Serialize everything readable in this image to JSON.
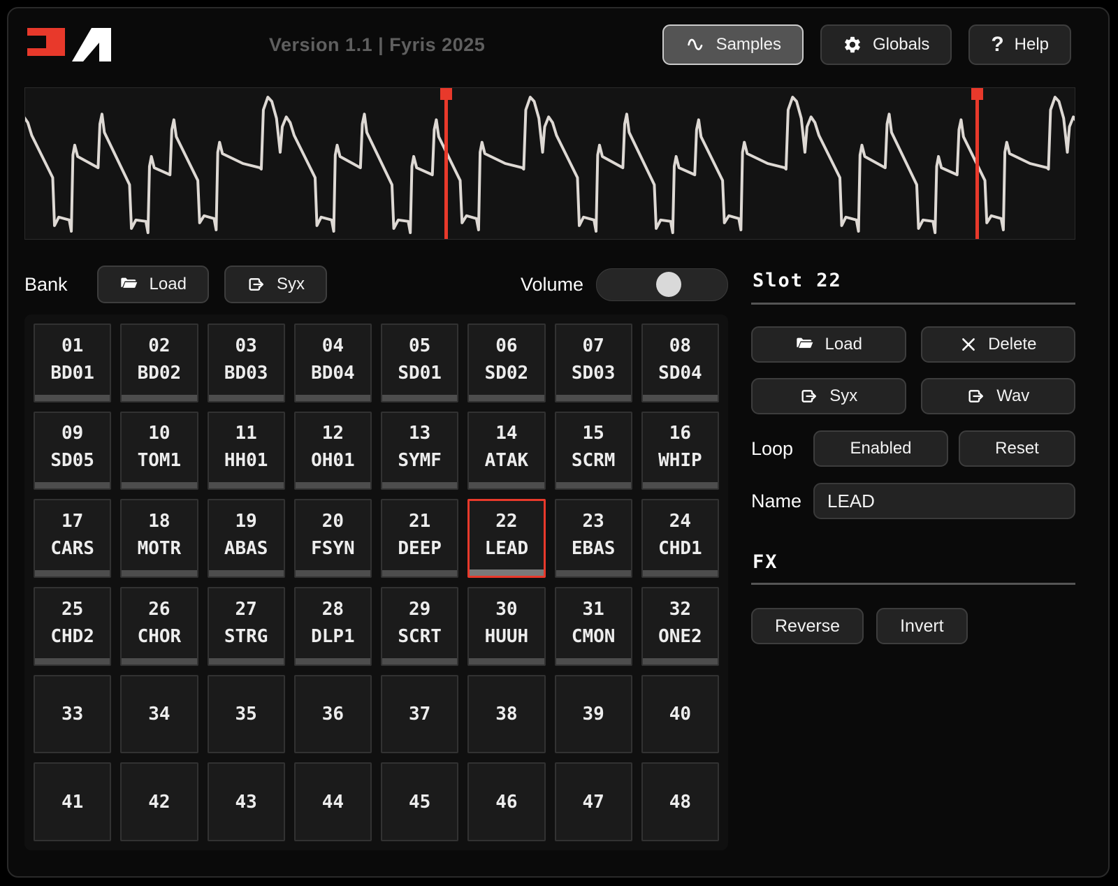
{
  "header": {
    "version_text": "Version 1.1 | Fyris 2025",
    "nav": [
      {
        "label": "Samples",
        "icon": "sine-icon",
        "active": true
      },
      {
        "label": "Globals",
        "icon": "gear-icon",
        "active": false
      },
      {
        "label": "Help",
        "icon": "question-icon",
        "active": false
      }
    ]
  },
  "waveform": {
    "stroke_color": "#ded9d4",
    "marker_color": "#e8392b",
    "markers_percent": [
      40.1,
      90.7
    ],
    "periods": 4,
    "phase": 0.1,
    "period_points": [
      [
        0.0,
        0.54
      ],
      [
        0.008,
        0.12
      ],
      [
        0.025,
        0.03
      ],
      [
        0.04,
        0.06
      ],
      [
        0.058,
        0.18
      ],
      [
        0.072,
        0.42
      ],
      [
        0.08,
        0.24
      ],
      [
        0.095,
        0.17
      ],
      [
        0.11,
        0.21
      ],
      [
        0.125,
        0.3
      ],
      [
        0.205,
        0.6
      ],
      [
        0.212,
        0.94
      ],
      [
        0.228,
        0.88
      ],
      [
        0.268,
        0.9
      ],
      [
        0.276,
        0.98
      ],
      [
        0.282,
        0.44
      ],
      [
        0.289,
        0.37
      ],
      [
        0.3,
        0.45
      ],
      [
        0.378,
        0.53
      ],
      [
        0.385,
        0.22
      ],
      [
        0.393,
        0.15
      ],
      [
        0.402,
        0.28
      ],
      [
        0.498,
        0.65
      ],
      [
        0.505,
        0.96
      ],
      [
        0.522,
        0.9
      ],
      [
        0.56,
        0.91
      ],
      [
        0.568,
        0.99
      ],
      [
        0.574,
        0.52
      ],
      [
        0.581,
        0.45
      ],
      [
        0.592,
        0.53
      ],
      [
        0.652,
        0.58
      ],
      [
        0.659,
        0.26
      ],
      [
        0.667,
        0.19
      ],
      [
        0.676,
        0.31
      ],
      [
        0.758,
        0.62
      ],
      [
        0.765,
        0.92
      ],
      [
        0.782,
        0.87
      ],
      [
        0.82,
        0.89
      ],
      [
        0.828,
        0.97
      ],
      [
        0.834,
        0.42
      ],
      [
        0.841,
        0.35
      ],
      [
        0.852,
        0.43
      ],
      [
        0.93,
        0.5
      ],
      [
        0.995,
        0.53
      ],
      [
        1.0,
        0.54
      ]
    ]
  },
  "bank": {
    "label": "Bank",
    "load_label": "Load",
    "syx_label": "Syx",
    "volume_label": "Volume",
    "volume_percent": 55
  },
  "slots": {
    "selected": 22,
    "items": [
      {
        "num": "01",
        "name": "BD01"
      },
      {
        "num": "02",
        "name": "BD02"
      },
      {
        "num": "03",
        "name": "BD03"
      },
      {
        "num": "04",
        "name": "BD04"
      },
      {
        "num": "05",
        "name": "SD01"
      },
      {
        "num": "06",
        "name": "SD02"
      },
      {
        "num": "07",
        "name": "SD03"
      },
      {
        "num": "08",
        "name": "SD04"
      },
      {
        "num": "09",
        "name": "SD05"
      },
      {
        "num": "10",
        "name": "TOM1"
      },
      {
        "num": "11",
        "name": "HH01"
      },
      {
        "num": "12",
        "name": "OH01"
      },
      {
        "num": "13",
        "name": "SYMF"
      },
      {
        "num": "14",
        "name": "ATAK"
      },
      {
        "num": "15",
        "name": "SCRM"
      },
      {
        "num": "16",
        "name": "WHIP"
      },
      {
        "num": "17",
        "name": "CARS"
      },
      {
        "num": "18",
        "name": "MOTR"
      },
      {
        "num": "19",
        "name": "ABAS"
      },
      {
        "num": "20",
        "name": "FSYN"
      },
      {
        "num": "21",
        "name": "DEEP"
      },
      {
        "num": "22",
        "name": "LEAD"
      },
      {
        "num": "23",
        "name": "EBAS"
      },
      {
        "num": "24",
        "name": "CHD1"
      },
      {
        "num": "25",
        "name": "CHD2"
      },
      {
        "num": "26",
        "name": "CHOR"
      },
      {
        "num": "27",
        "name": "STRG"
      },
      {
        "num": "28",
        "name": "DLP1"
      },
      {
        "num": "29",
        "name": "SCRT"
      },
      {
        "num": "30",
        "name": "HUUH"
      },
      {
        "num": "31",
        "name": "CMON"
      },
      {
        "num": "32",
        "name": "ONE2"
      },
      {
        "num": "33",
        "name": ""
      },
      {
        "num": "34",
        "name": ""
      },
      {
        "num": "35",
        "name": ""
      },
      {
        "num": "36",
        "name": ""
      },
      {
        "num": "37",
        "name": ""
      },
      {
        "num": "38",
        "name": ""
      },
      {
        "num": "39",
        "name": ""
      },
      {
        "num": "40",
        "name": ""
      },
      {
        "num": "41",
        "name": ""
      },
      {
        "num": "42",
        "name": ""
      },
      {
        "num": "43",
        "name": ""
      },
      {
        "num": "44",
        "name": ""
      },
      {
        "num": "45",
        "name": ""
      },
      {
        "num": "46",
        "name": ""
      },
      {
        "num": "47",
        "name": ""
      },
      {
        "num": "48",
        "name": ""
      }
    ]
  },
  "panel": {
    "title": "Slot 22",
    "load_label": "Load",
    "delete_label": "Delete",
    "syx_label": "Syx",
    "wav_label": "Wav",
    "loop_label": "Loop",
    "loop_enabled_label": "Enabled",
    "loop_reset_label": "Reset",
    "name_label": "Name",
    "name_value": "LEAD",
    "fx_label": "FX",
    "reverse_label": "Reverse",
    "invert_label": "Invert"
  },
  "colors": {
    "accent_red": "#e8392b",
    "active_button_bg": "#545454",
    "button_bg": "#232323",
    "cell_bg": "#1b1b1b"
  }
}
